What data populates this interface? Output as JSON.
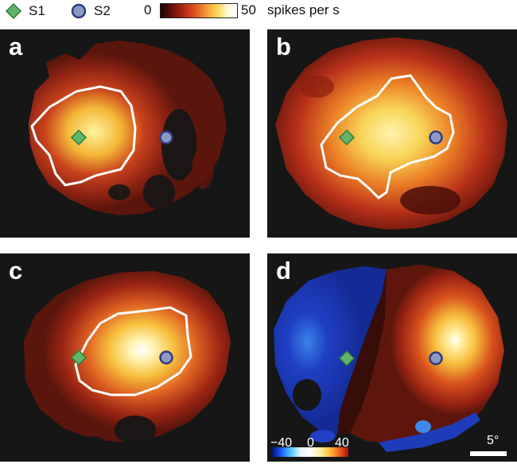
{
  "legend": {
    "s1_label": "S1",
    "s2_label": "S2",
    "scale_min": "0",
    "scale_max": "50",
    "scale_unit": "spikes per s"
  },
  "panels": [
    {
      "letter": "a"
    },
    {
      "letter": "b"
    },
    {
      "letter": "c"
    },
    {
      "letter": "d",
      "diff_scale": [
        "−40",
        "0",
        "40"
      ],
      "scale_bar_label": "5°"
    }
  ],
  "colors": {
    "s1_marker": "#62b46a",
    "s2_marker": "#8e98c4",
    "s2_outline": "#2d3d7f",
    "contour": "#ffffff",
    "background": "#161616"
  },
  "chart_data": {
    "type": "heatmap",
    "title": "",
    "colorbar": {
      "range": [
        0,
        50
      ],
      "unit": "spikes per s"
    },
    "panels": [
      {
        "letter": "a",
        "map": "response rate",
        "range": [
          0,
          50
        ],
        "markers": [
          "S1",
          "S2"
        ]
      },
      {
        "letter": "b",
        "map": "response rate",
        "range": [
          0,
          50
        ],
        "markers": [
          "S1",
          "S2"
        ]
      },
      {
        "letter": "c",
        "map": "response rate",
        "range": [
          0,
          50
        ],
        "markers": [
          "S1",
          "S2"
        ]
      },
      {
        "letter": "d",
        "map": "difference",
        "range": [
          -40,
          40
        ],
        "ticks": [
          -40,
          0,
          40
        ],
        "markers": [
          "S1",
          "S2"
        ]
      }
    ],
    "scale_bar": "5°"
  }
}
